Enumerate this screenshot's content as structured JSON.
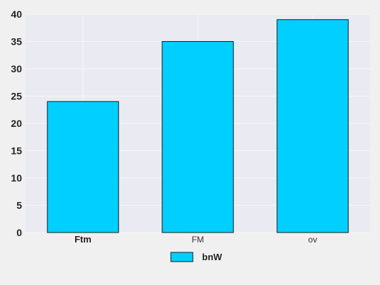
{
  "chart_data": {
    "type": "bar",
    "categories": [
      "Ftm",
      "FM",
      "ov"
    ],
    "series": [
      {
        "name": "bnW",
        "values": [
          24,
          35,
          39
        ]
      }
    ],
    "ylim": [
      0,
      40
    ],
    "yticks": [
      0,
      5,
      10,
      15,
      20,
      25,
      30,
      35,
      40
    ],
    "grid": true,
    "legend_position": "bottom-center",
    "colors": {
      "bar_fill": "#00cfff",
      "bar_stroke": "#1a1a1a",
      "plot_background": "#eaeaf2",
      "page_background": "#f0f0f0",
      "grid": "#f6f6fa"
    }
  }
}
